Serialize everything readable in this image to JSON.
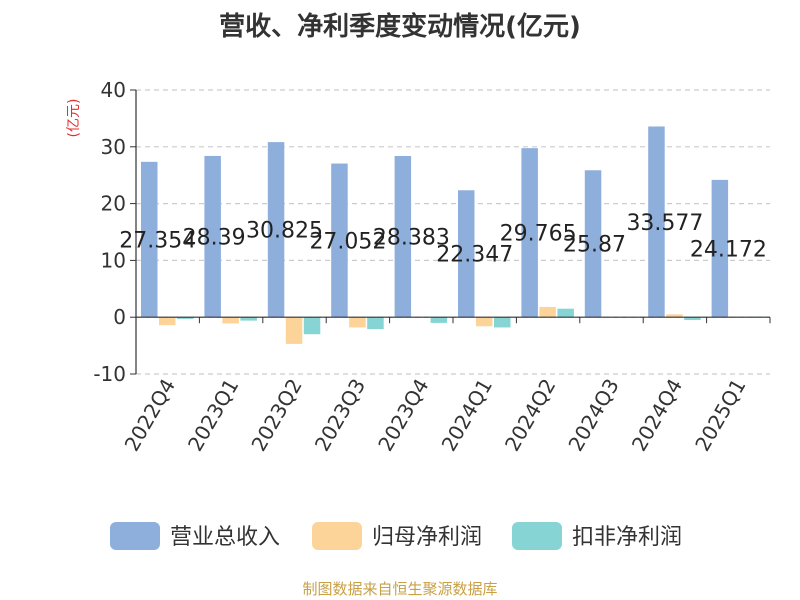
{
  "chart_data": {
    "type": "bar",
    "title": "营收、净利季度变动情况(亿元)",
    "unit_label": "(亿元)",
    "categories": [
      "2022Q4",
      "2023Q1",
      "2023Q2",
      "2023Q3",
      "2023Q4",
      "2024Q1",
      "2024Q2",
      "2024Q3",
      "2024Q4",
      "2025Q1"
    ],
    "series": [
      {
        "name": "营业总收入",
        "color": "#8eafdc",
        "values": [
          27.354,
          28.39,
          30.825,
          27.052,
          28.383,
          22.347,
          29.765,
          25.87,
          33.577,
          24.172
        ]
      },
      {
        "name": "归母净利润",
        "color": "#fcd49a",
        "values": [
          -1.4,
          -1.1,
          -4.7,
          -1.8,
          0,
          -1.6,
          1.8,
          0,
          0.5,
          0.1
        ]
      },
      {
        "name": "扣非净利润",
        "color": "#86d4d4",
        "values": [
          -0.3,
          -0.6,
          -3.0,
          -2.1,
          -1.0,
          -1.8,
          1.5,
          0,
          -0.5,
          0.1
        ]
      }
    ],
    "data_labels": [
      "27.354",
      "28.39",
      "30.825",
      "27.052",
      "28.383",
      "22.347",
      "29.765",
      "25.87",
      "33.577",
      "24.172"
    ],
    "ylim": [
      -10,
      40
    ],
    "yticks": [
      -10,
      0,
      10,
      20,
      30,
      40
    ],
    "grid": true,
    "legend_position": "bottom"
  },
  "footer": {
    "source": "制图数据来自恒生聚源数据库"
  }
}
